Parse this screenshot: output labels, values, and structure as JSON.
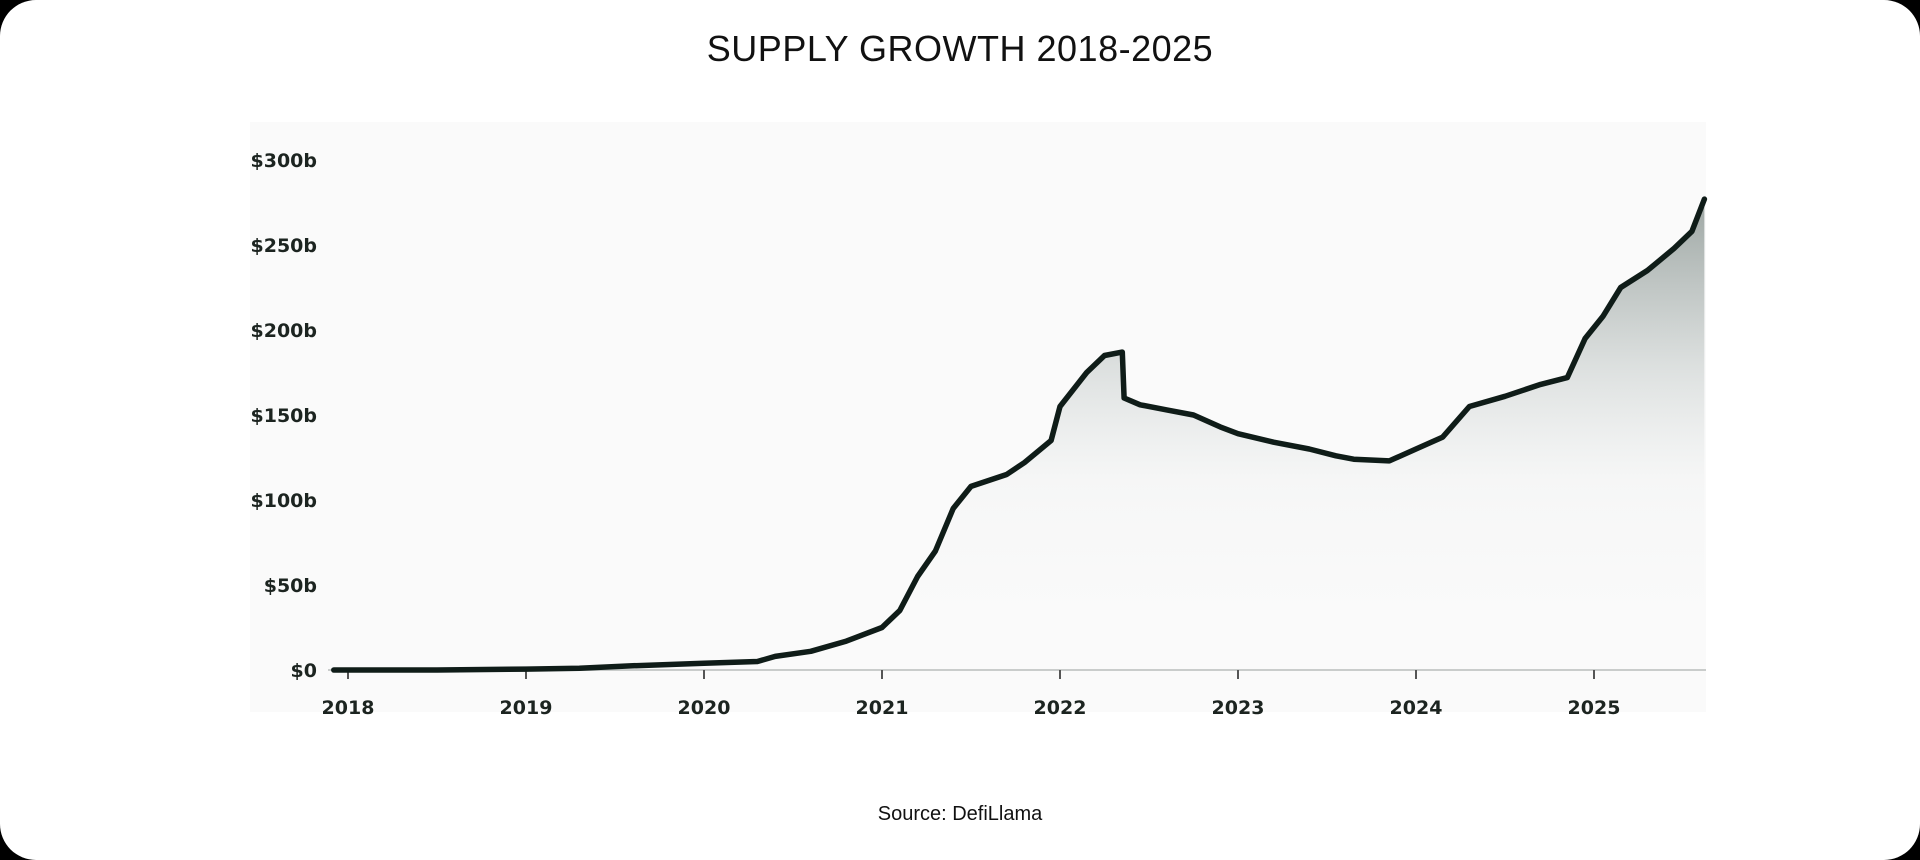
{
  "title": "SUPPLY GROWTH 2018-2025",
  "source": "Source: DefiLlama",
  "chart_data": {
    "type": "area",
    "title": "SUPPLY GROWTH 2018-2025",
    "xlabel": "",
    "ylabel": "",
    "xlim": [
      2017.9,
      2025.62
    ],
    "ylim": [
      0,
      300
    ],
    "grid": false,
    "line_color": "#0f1c18",
    "fill_color": "#9ea7a4",
    "y_ticks": [
      {
        "value": 0,
        "label": "$0"
      },
      {
        "value": 50,
        "label": "$50b"
      },
      {
        "value": 100,
        "label": "$100b"
      },
      {
        "value": 150,
        "label": "$150b"
      },
      {
        "value": 200,
        "label": "$200b"
      },
      {
        "value": 250,
        "label": "$250b"
      },
      {
        "value": 300,
        "label": "$300b"
      }
    ],
    "x_ticks": [
      {
        "value": 2018,
        "label": "2018"
      },
      {
        "value": 2019,
        "label": "2019"
      },
      {
        "value": 2020,
        "label": "2020"
      },
      {
        "value": 2021,
        "label": "2021"
      },
      {
        "value": 2022,
        "label": "2022"
      },
      {
        "value": 2023,
        "label": "2023"
      },
      {
        "value": 2024,
        "label": "2024"
      },
      {
        "value": 2025,
        "label": "2025"
      }
    ],
    "series": [
      {
        "x": [
          2017.92,
          2018.5,
          2019.0,
          2019.3,
          2019.6,
          2020.0,
          2020.3,
          2020.4,
          2020.6,
          2020.8,
          2021.0,
          2021.1,
          2021.2,
          2021.3,
          2021.4,
          2021.5,
          2021.7,
          2021.8,
          2021.95,
          2022.0,
          2022.15,
          2022.25,
          2022.35,
          2022.36,
          2022.45,
          2022.6,
          2022.75,
          2022.9,
          2023.0,
          2023.2,
          2023.4,
          2023.55,
          2023.65,
          2023.85,
          2024.0,
          2024.15,
          2024.3,
          2024.5,
          2024.7,
          2024.85,
          2024.95,
          2025.05,
          2025.15,
          2025.3,
          2025.45,
          2025.55,
          2025.62
        ],
        "y": [
          0,
          0,
          0.5,
          1,
          2.5,
          4,
          5,
          8,
          11,
          17,
          25,
          35,
          55,
          70,
          95,
          108,
          115,
          122,
          135,
          155,
          175,
          185,
          187,
          160,
          156,
          153,
          150,
          143,
          139,
          134,
          130,
          126,
          124,
          123,
          130,
          137,
          155,
          161,
          168,
          172,
          195,
          208,
          225,
          235,
          248,
          258,
          277
        ]
      }
    ]
  }
}
